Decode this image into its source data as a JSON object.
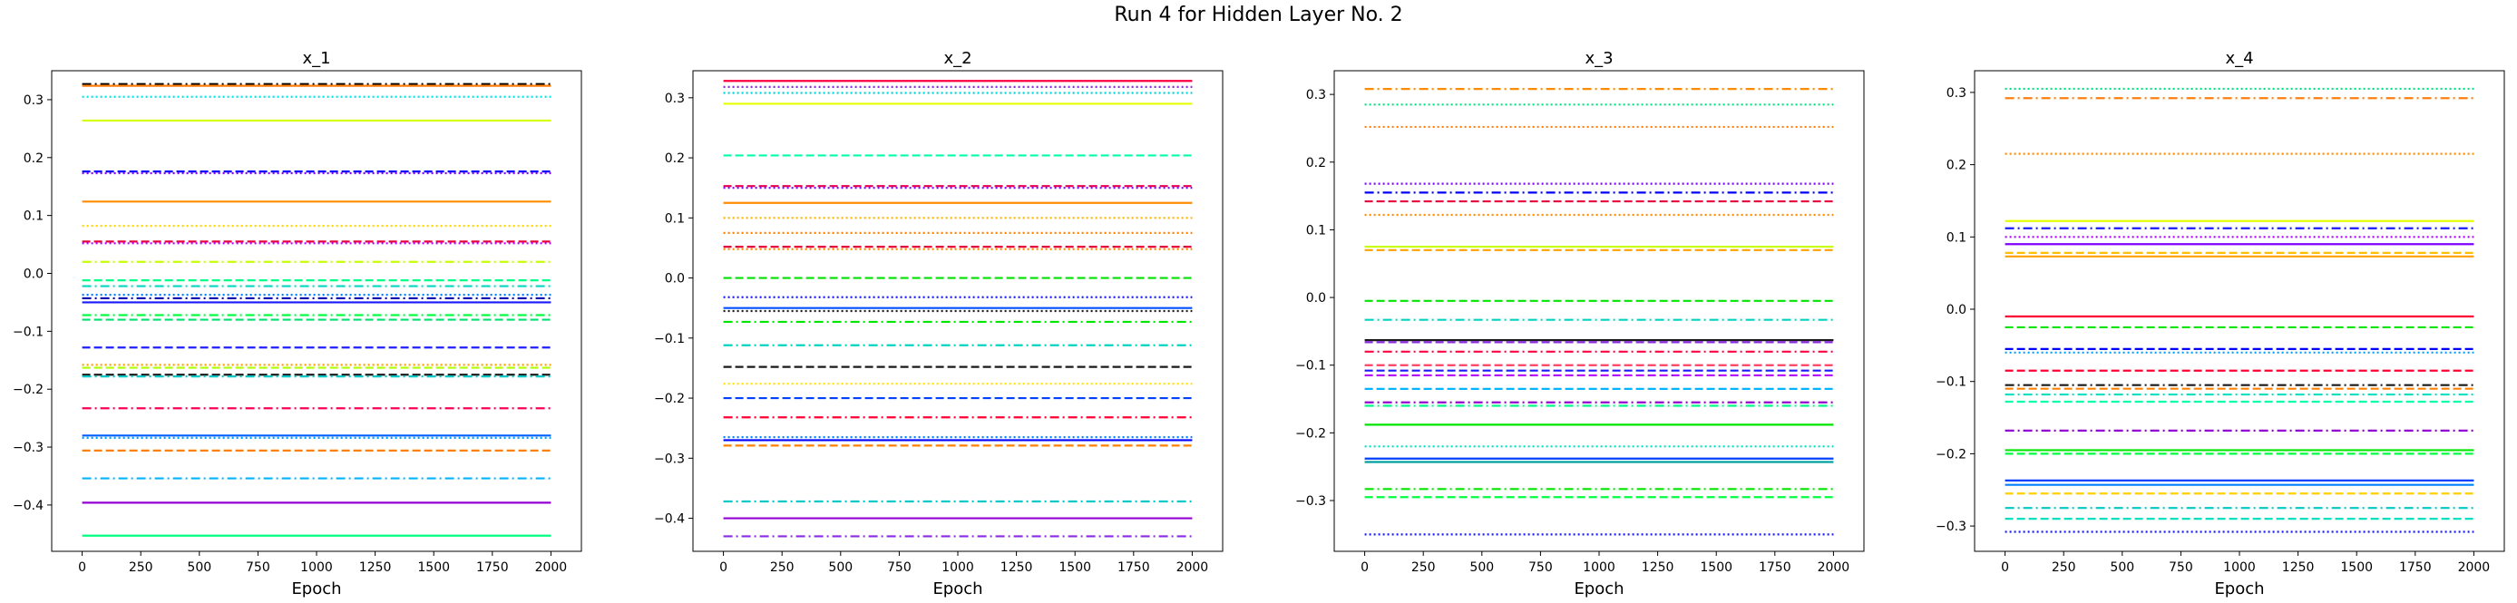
{
  "figure": {
    "title": "Run 4 for Hidden Layer No. 2"
  },
  "chart_data": [
    {
      "type": "line",
      "title": "x_1",
      "xlabel": "Epoch",
      "ylabel": "",
      "xlim": [
        -130,
        2130
      ],
      "ylim": [
        -0.48,
        0.35
      ],
      "xticks": [
        0,
        250,
        500,
        750,
        1000,
        1250,
        1500,
        1750,
        2000
      ],
      "yticks": [
        -0.4,
        -0.3,
        -0.2,
        -0.1,
        0.0,
        0.1,
        0.2,
        0.3
      ],
      "ytick_labels": [
        "−0.4",
        "−0.3",
        "−0.2",
        "−0.1",
        "0.0",
        "0.1",
        "0.2",
        "0.3"
      ],
      "x": [
        0,
        2000
      ],
      "grid": false,
      "series": [
        {
          "value": 0.327,
          "color": "#000000",
          "style": "dashdot"
        },
        {
          "value": 0.324,
          "color": "#ff7f0e",
          "style": "solid"
        },
        {
          "value": 0.305,
          "color": "#00e5e5",
          "style": "dotted"
        },
        {
          "value": 0.264,
          "color": "#d4ff00",
          "style": "solid"
        },
        {
          "value": 0.176,
          "color": "#0000ff",
          "style": "dashed"
        },
        {
          "value": 0.173,
          "color": "#7f00ff",
          "style": "dotted"
        },
        {
          "value": 0.124,
          "color": "#ff8c00",
          "style": "solid"
        },
        {
          "value": 0.082,
          "color": "#ffd700",
          "style": "dotted"
        },
        {
          "value": 0.055,
          "color": "#e6003c",
          "style": "dashed"
        },
        {
          "value": 0.052,
          "color": "#b400ff",
          "style": "dotted"
        },
        {
          "value": 0.02,
          "color": "#c8ff00",
          "style": "dashdot"
        },
        {
          "value": -0.012,
          "color": "#00ff88",
          "style": "dashed"
        },
        {
          "value": -0.022,
          "color": "#00d9c0",
          "style": "dashdot"
        },
        {
          "value": -0.037,
          "color": "#007fff",
          "style": "dotted"
        },
        {
          "value": -0.043,
          "color": "#0000b4",
          "style": "dashdot"
        },
        {
          "value": -0.05,
          "color": "#1a1aff",
          "style": "solid"
        },
        {
          "value": -0.072,
          "color": "#00ff40",
          "style": "dashdot"
        },
        {
          "value": -0.08,
          "color": "#00e070",
          "style": "dashed"
        },
        {
          "value": -0.128,
          "color": "#2020ff",
          "style": "dashed"
        },
        {
          "value": -0.158,
          "color": "#ffa000",
          "style": "dotted"
        },
        {
          "value": -0.163,
          "color": "#b0ff00",
          "style": "dashed"
        },
        {
          "value": -0.175,
          "color": "#1a1a1a",
          "style": "dashed"
        },
        {
          "value": -0.178,
          "color": "#00c8c8",
          "style": "dashdot"
        },
        {
          "value": -0.233,
          "color": "#ff0055",
          "style": "dashdot"
        },
        {
          "value": -0.28,
          "color": "#0060ff",
          "style": "solid"
        },
        {
          "value": -0.284,
          "color": "#00a0ff",
          "style": "dotted"
        },
        {
          "value": -0.306,
          "color": "#ff8000",
          "style": "dashed"
        },
        {
          "value": -0.354,
          "color": "#00b4ff",
          "style": "dashdot"
        },
        {
          "value": -0.396,
          "color": "#9400d3",
          "style": "solid"
        },
        {
          "value": -0.453,
          "color": "#00ff7f",
          "style": "solid"
        }
      ]
    },
    {
      "type": "line",
      "title": "x_2",
      "xlabel": "Epoch",
      "ylabel": "",
      "xlim": [
        -130,
        2130
      ],
      "ylim": [
        -0.455,
        0.345
      ],
      "xticks": [
        0,
        250,
        500,
        750,
        1000,
        1250,
        1500,
        1750,
        2000
      ],
      "yticks": [
        -0.4,
        -0.3,
        -0.2,
        -0.1,
        0.0,
        0.1,
        0.2,
        0.3
      ],
      "ytick_labels": [
        "−0.4",
        "−0.3",
        "−0.2",
        "−0.1",
        "0.0",
        "0.1",
        "0.2",
        "0.3"
      ],
      "x": [
        0,
        2000
      ],
      "grid": false,
      "series": [
        {
          "value": 0.328,
          "color": "#ff0040",
          "style": "solid"
        },
        {
          "value": 0.318,
          "color": "#8a2be2",
          "style": "dotted"
        },
        {
          "value": 0.308,
          "color": "#00d4d4",
          "style": "dotted"
        },
        {
          "value": 0.29,
          "color": "#e6ff00",
          "style": "solid"
        },
        {
          "value": 0.204,
          "color": "#00ffaa",
          "style": "dashed"
        },
        {
          "value": 0.153,
          "color": "#e60050",
          "style": "dashed"
        },
        {
          "value": 0.15,
          "color": "#7f00ff",
          "style": "dotted"
        },
        {
          "value": 0.125,
          "color": "#ff8c00",
          "style": "solid"
        },
        {
          "value": 0.1,
          "color": "#ffb000",
          "style": "dotted"
        },
        {
          "value": 0.075,
          "color": "#ff8000",
          "style": "dotted"
        },
        {
          "value": 0.052,
          "color": "#e6003c",
          "style": "dashed"
        },
        {
          "value": 0.048,
          "color": "#ff8c00",
          "style": "dotted"
        },
        {
          "value": 0.0,
          "color": "#00e000",
          "style": "dashed"
        },
        {
          "value": -0.032,
          "color": "#1a1aff",
          "style": "dotted"
        },
        {
          "value": -0.05,
          "color": "#0050ff",
          "style": "solid"
        },
        {
          "value": -0.055,
          "color": "#1a1a1a",
          "style": "dotted"
        },
        {
          "value": -0.073,
          "color": "#00e600",
          "style": "dashdot"
        },
        {
          "value": -0.112,
          "color": "#00d4c0",
          "style": "dashdot"
        },
        {
          "value": -0.148,
          "color": "#1a1a1a",
          "style": "dashed"
        },
        {
          "value": -0.176,
          "color": "#ffe000",
          "style": "dotted"
        },
        {
          "value": -0.2,
          "color": "#0040ff",
          "style": "dashed"
        },
        {
          "value": -0.232,
          "color": "#ff0033",
          "style": "dashdot"
        },
        {
          "value": -0.265,
          "color": "#0080ff",
          "style": "dotted"
        },
        {
          "value": -0.27,
          "color": "#0000ff",
          "style": "solid"
        },
        {
          "value": -0.279,
          "color": "#ff8000",
          "style": "dashed"
        },
        {
          "value": -0.372,
          "color": "#00c8c8",
          "style": "dashdot"
        },
        {
          "value": -0.4,
          "color": "#9400d3",
          "style": "solid"
        },
        {
          "value": -0.43,
          "color": "#8a2be2",
          "style": "dashdot"
        }
      ]
    },
    {
      "type": "line",
      "title": "x_3",
      "xlabel": "Epoch",
      "ylabel": "",
      "xlim": [
        -130,
        2130
      ],
      "ylim": [
        -0.375,
        0.335
      ],
      "xticks": [
        0,
        250,
        500,
        750,
        1000,
        1250,
        1500,
        1750,
        2000
      ],
      "yticks": [
        -0.3,
        -0.2,
        -0.1,
        0.0,
        0.1,
        0.2,
        0.3
      ],
      "ytick_labels": [
        "−0.3",
        "−0.2",
        "−0.1",
        "0.0",
        "0.1",
        "0.2",
        "0.3"
      ],
      "x": [
        0,
        2000
      ],
      "grid": false,
      "series": [
        {
          "value": 0.308,
          "color": "#ff8c00",
          "style": "dashdot"
        },
        {
          "value": 0.285,
          "color": "#00e080",
          "style": "dotted"
        },
        {
          "value": 0.252,
          "color": "#ff7f0e",
          "style": "dotted"
        },
        {
          "value": 0.168,
          "color": "#7f00ff",
          "style": "dotted"
        },
        {
          "value": 0.155,
          "color": "#0000ff",
          "style": "dashdot"
        },
        {
          "value": 0.142,
          "color": "#e6003c",
          "style": "dashed"
        },
        {
          "value": 0.122,
          "color": "#ff8c00",
          "style": "dotted"
        },
        {
          "value": 0.075,
          "color": "#c8ff00",
          "style": "solid"
        },
        {
          "value": 0.07,
          "color": "#ffa000",
          "style": "dashed"
        },
        {
          "value": -0.005,
          "color": "#00e600",
          "style": "dashed"
        },
        {
          "value": -0.033,
          "color": "#00d4c0",
          "style": "dashdot"
        },
        {
          "value": -0.063,
          "color": "#1a1a1a",
          "style": "solid"
        },
        {
          "value": -0.066,
          "color": "#8a2be2",
          "style": "dashed"
        },
        {
          "value": -0.08,
          "color": "#ff0040",
          "style": "dashdot"
        },
        {
          "value": -0.1,
          "color": "#ff4060",
          "style": "dashed"
        },
        {
          "value": -0.108,
          "color": "#1a1aff",
          "style": "dashed"
        },
        {
          "value": -0.115,
          "color": "#b400ff",
          "style": "dashed"
        },
        {
          "value": -0.135,
          "color": "#00b4ff",
          "style": "dashed"
        },
        {
          "value": -0.155,
          "color": "#9400d3",
          "style": "dashdot"
        },
        {
          "value": -0.16,
          "color": "#00ff88",
          "style": "dashdot"
        },
        {
          "value": -0.188,
          "color": "#00e600",
          "style": "solid"
        },
        {
          "value": -0.22,
          "color": "#00e0c0",
          "style": "dotted"
        },
        {
          "value": -0.238,
          "color": "#0040ff",
          "style": "solid"
        },
        {
          "value": -0.243,
          "color": "#00a0a0",
          "style": "solid"
        },
        {
          "value": -0.283,
          "color": "#00e600",
          "style": "dashdot"
        },
        {
          "value": -0.295,
          "color": "#00ff40",
          "style": "dashed"
        },
        {
          "value": -0.35,
          "color": "#1a1aff",
          "style": "dotted"
        }
      ]
    },
    {
      "type": "line",
      "title": "x_4",
      "xlabel": "Epoch",
      "ylabel": "",
      "xlim": [
        -130,
        2130
      ],
      "ylim": [
        -0.335,
        0.33
      ],
      "xticks": [
        0,
        250,
        500,
        750,
        1000,
        1250,
        1500,
        1750,
        2000
      ],
      "yticks": [
        -0.3,
        -0.2,
        -0.1,
        0.0,
        0.1,
        0.2,
        0.3
      ],
      "ytick_labels": [
        "−0.3",
        "−0.2",
        "−0.1",
        "0.0",
        "0.1",
        "0.2",
        "0.3"
      ],
      "x": [
        0,
        2000
      ],
      "grid": false,
      "series": [
        {
          "value": 0.305,
          "color": "#00e080",
          "style": "dotted"
        },
        {
          "value": 0.292,
          "color": "#ff7f0e",
          "style": "dashdot"
        },
        {
          "value": 0.215,
          "color": "#ff8c00",
          "style": "dotted"
        },
        {
          "value": 0.122,
          "color": "#e6ff00",
          "style": "solid"
        },
        {
          "value": 0.112,
          "color": "#1a1aff",
          "style": "dashdot"
        },
        {
          "value": 0.1,
          "color": "#b400ff",
          "style": "dotted"
        },
        {
          "value": 0.09,
          "color": "#7f00ff",
          "style": "solid"
        },
        {
          "value": 0.078,
          "color": "#ffc000",
          "style": "dashed"
        },
        {
          "value": 0.073,
          "color": "#ffa000",
          "style": "solid"
        },
        {
          "value": -0.01,
          "color": "#ff0033",
          "style": "solid"
        },
        {
          "value": -0.025,
          "color": "#00e600",
          "style": "dashed"
        },
        {
          "value": -0.055,
          "color": "#0000ff",
          "style": "dashed"
        },
        {
          "value": -0.06,
          "color": "#00a0ff",
          "style": "dotted"
        },
        {
          "value": -0.085,
          "color": "#ff0033",
          "style": "dashed"
        },
        {
          "value": -0.105,
          "color": "#1a1a1a",
          "style": "dashdot"
        },
        {
          "value": -0.11,
          "color": "#ff8000",
          "style": "dashed"
        },
        {
          "value": -0.118,
          "color": "#00e0c0",
          "style": "dashdot"
        },
        {
          "value": -0.128,
          "color": "#00ffaa",
          "style": "dashed"
        },
        {
          "value": -0.168,
          "color": "#9400d3",
          "style": "dashdot"
        },
        {
          "value": -0.195,
          "color": "#00e600",
          "style": "solid"
        },
        {
          "value": -0.2,
          "color": "#00ff40",
          "style": "dashed"
        },
        {
          "value": -0.237,
          "color": "#0040ff",
          "style": "solid"
        },
        {
          "value": -0.243,
          "color": "#0080ff",
          "style": "solid"
        },
        {
          "value": -0.255,
          "color": "#ffd000",
          "style": "dashed"
        },
        {
          "value": -0.275,
          "color": "#00c8c8",
          "style": "dashdot"
        },
        {
          "value": -0.29,
          "color": "#00e0c0",
          "style": "dashed"
        },
        {
          "value": -0.308,
          "color": "#1a1aff",
          "style": "dotted"
        }
      ]
    }
  ]
}
